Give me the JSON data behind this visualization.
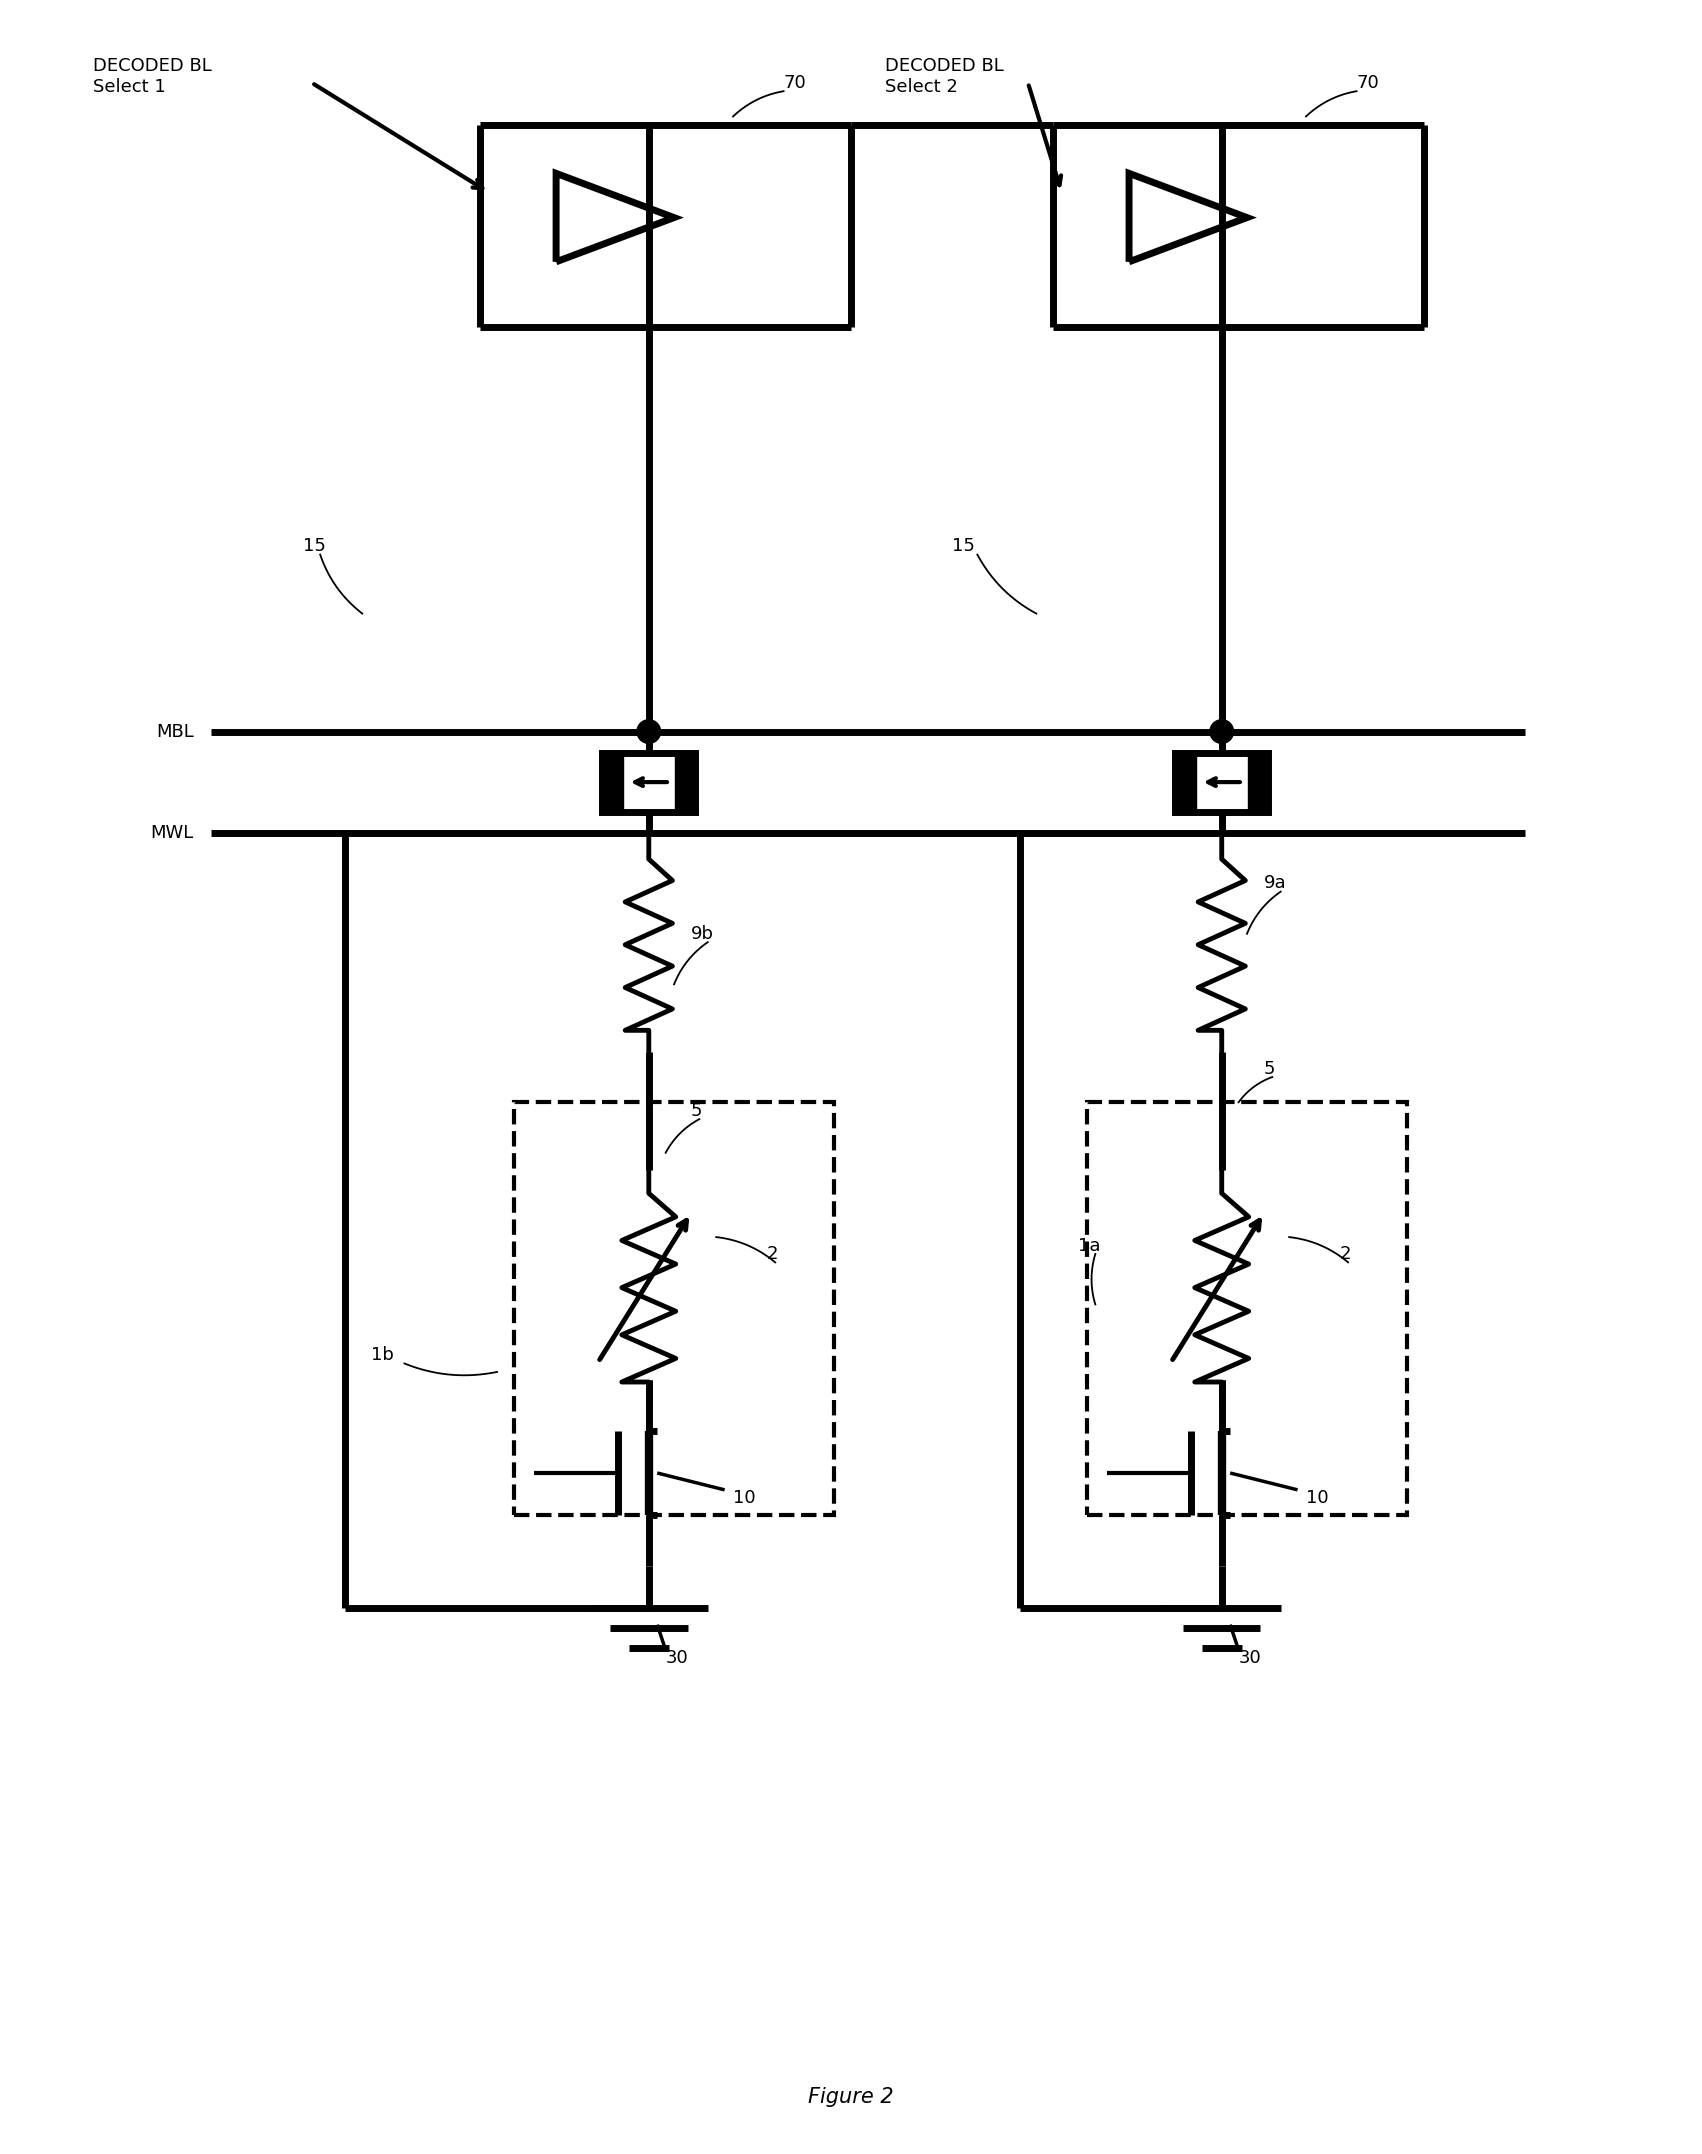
{
  "title": "Figure 2",
  "bg_color": "#ffffff",
  "line_color": "#000000",
  "lw": 3.0,
  "tlw": 5.0,
  "fig_width": 17.02,
  "fig_height": 21.54,
  "labels": {
    "decoded_bl_1": "DECODED BL\nSelect 1",
    "decoded_bl_2": "DECODED BL\nSelect 2",
    "mbl": "MBL",
    "mwl": "MWL",
    "70": "70",
    "15_left": "15",
    "15_right": "15",
    "9b": "9b",
    "9a": "9a",
    "5_left": "5",
    "5_right": "5",
    "2_left": "2",
    "2_right": "2",
    "1b": "1b",
    "1a": "1a",
    "10_left": "10",
    "10_right": "10",
    "30_left": "30",
    "30_right": "30"
  }
}
